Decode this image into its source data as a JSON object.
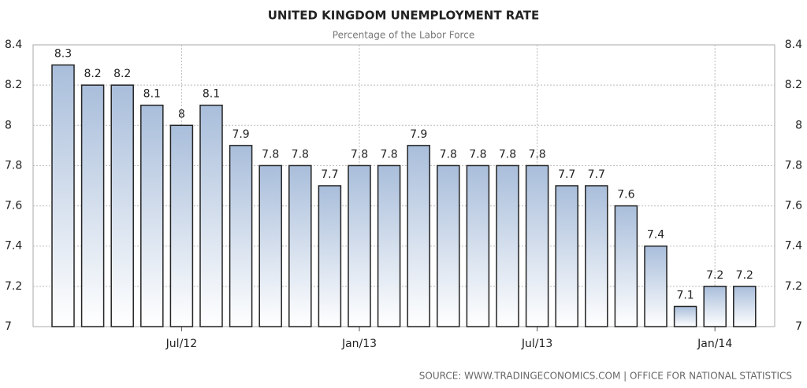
{
  "chart_data": {
    "type": "bar",
    "title": "UNITED KINGDOM UNEMPLOYMENT RATE",
    "subtitle": "Percentage of the Labor Force",
    "source": "SOURCE:  WWW.TRADINGECONOMICS.COM  |  OFFICE FOR NATIONAL STATISTICS",
    "categories": [
      null,
      null,
      null,
      null,
      "Jul/12",
      null,
      null,
      null,
      null,
      null,
      "Jan/13",
      null,
      null,
      null,
      null,
      null,
      "Jul/13",
      null,
      null,
      null,
      null,
      null,
      "Jan/14",
      null
    ],
    "values": [
      8.3,
      8.2,
      8.2,
      8.1,
      8,
      8.1,
      7.9,
      7.8,
      7.8,
      7.7,
      7.8,
      7.8,
      7.9,
      7.8,
      7.8,
      7.8,
      7.8,
      7.7,
      7.7,
      7.6,
      7.4,
      7.1,
      7.2,
      7.2
    ],
    "color": "#a9bedb",
    "ylim": [
      7,
      8.4
    ],
    "yticks": [
      7,
      7.2,
      7.4,
      7.6,
      7.8,
      8,
      8.2,
      8.4
    ],
    "y2lim": [
      7,
      8.4
    ],
    "y2ticks": [
      7,
      7.2,
      7.4,
      7.6,
      7.8,
      8,
      8.2,
      8.4
    ],
    "grid": true
  }
}
